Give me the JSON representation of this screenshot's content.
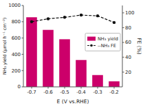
{
  "chart_data": {
    "type": "bar",
    "categories": [
      "-0.7",
      "-0.6",
      "-0.5",
      "-0.4",
      "-0.3",
      "-0.2"
    ],
    "xlabel": "E (V vs.RHE)",
    "ylabel": "NH₃ yield (μmol h⁻¹ cm⁻²)",
    "y2label": "FE (%)",
    "ylim": [
      0,
      1000
    ],
    "yticks": [
      0,
      200,
      400,
      600,
      800,
      1000
    ],
    "y2lim": [
      0,
      110
    ],
    "y2ticks": [
      20,
      40,
      60,
      80,
      100
    ],
    "grid": false,
    "legend": "right",
    "series": [
      {
        "name": "NH₃ yield",
        "type": "bar",
        "color": "#CC006A",
        "values": [
          855,
          700,
          585,
          330,
          145,
          68
        ]
      },
      {
        "name": "--NH₃ FE",
        "type": "line",
        "axis": "y2",
        "color": "#111111",
        "line_style": "dashed",
        "marker": "circle",
        "values": [
          88,
          92,
          94,
          97,
          96,
          87
        ]
      }
    ]
  }
}
